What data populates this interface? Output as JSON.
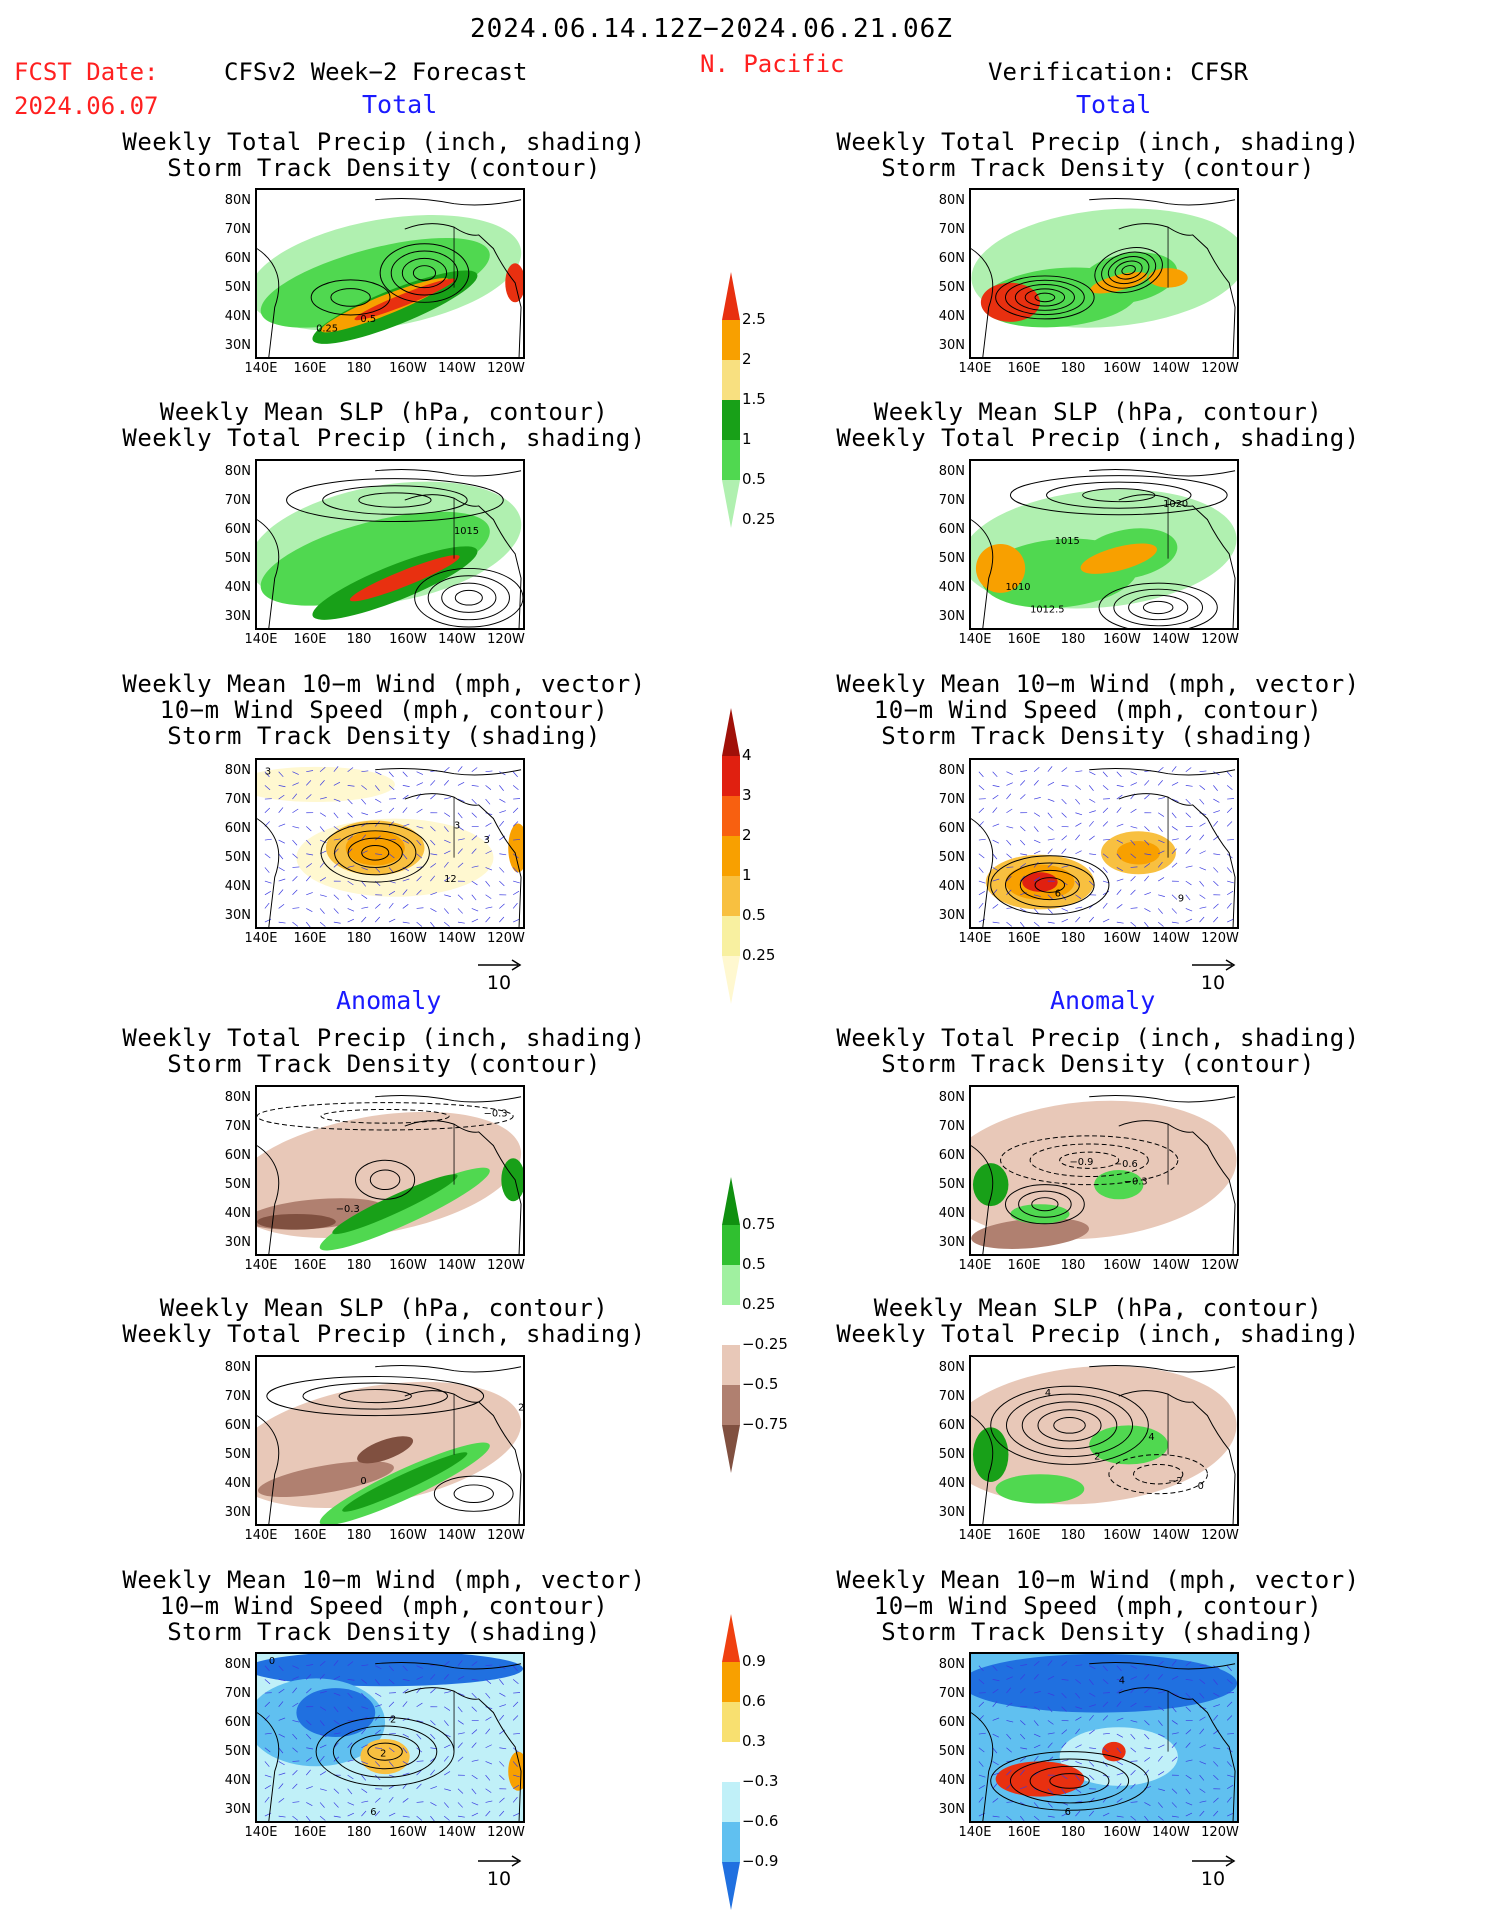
{
  "header": {
    "period": "2024.06.14.12Z−2024.06.21.06Z",
    "fcst_label": "FCST Date:",
    "fcst_date": "2024.06.07",
    "model_label": "CFSv2 Week−2 Forecast",
    "region": "N. Pacific",
    "verification_label": "Verification: CFSR"
  },
  "sections": {
    "total": "Total",
    "anomaly": "Anomaly"
  },
  "titles": {
    "precip_storm": [
      "Weekly Total Precip (inch, shading)",
      "Storm Track Density (contour)"
    ],
    "slp_precip": [
      "Weekly Mean SLP (hPa, contour)",
      "Weekly Total Precip (inch, shading)"
    ],
    "wind_storm": [
      "Weekly Mean 10−m Wind (mph, vector)",
      "10−m Wind Speed (mph, contour)",
      "Storm Track Density (shading)"
    ]
  },
  "axes": {
    "y_ticks": [
      "80N",
      "70N",
      "60N",
      "50N",
      "40N",
      "30N"
    ],
    "x_ticks": [
      "140E",
      "160E",
      "180",
      "160W",
      "140W",
      "120W"
    ]
  },
  "vector_reference": "10",
  "colorbars": [
    {
      "id": "total-precip",
      "labels": [
        "2.5",
        "2",
        "1.5",
        "1",
        "0.5",
        "0.25"
      ],
      "colors": [
        "#e83010",
        "#f8a000",
        "#f8e080",
        "#18a018",
        "#50d850",
        "#b0f0b0"
      ]
    },
    {
      "id": "total-storm",
      "labels": [
        "4",
        "3",
        "2",
        "1",
        "0.5",
        "0.25"
      ],
      "colors": [
        "#a01008",
        "#e02010",
        "#f86010",
        "#f8a000",
        "#f8c040",
        "#f8f0a0",
        "#fff8d0"
      ]
    },
    {
      "id": "anom-precip",
      "labels": [
        "0.75",
        "0.5",
        "0.25",
        "−0.25",
        "−0.5",
        "−0.75"
      ],
      "colors": [
        "#109010",
        "#30c030",
        "#a0f0a0",
        "#ffffff",
        "#e8c8b8",
        "#b08070",
        "#805040"
      ]
    },
    {
      "id": "anom-storm",
      "labels": [
        "0.9",
        "0.6",
        "0.3",
        "−0.3",
        "−0.6",
        "−0.9"
      ],
      "colors": [
        "#f04010",
        "#f8a000",
        "#f8e070",
        "#ffffff",
        "#c0f0f8",
        "#60c0f0",
        "#2070e0"
      ]
    }
  ],
  "panel_contour_labels": {
    "p1": [
      "0.25",
      "0.5"
    ],
    "p3": [
      "1015"
    ],
    "p4": [
      "1020",
      "1015",
      "1010",
      "1012.5"
    ],
    "p5": [
      "3",
      "3",
      "3",
      "12"
    ],
    "p6": [
      "6",
      "9"
    ],
    "p7": [
      "−0.3",
      "−0.3"
    ],
    "p8": [
      "−0.9",
      "−0.6",
      "−0.3"
    ],
    "p9": [
      "2",
      "0"
    ],
    "p10": [
      "4",
      "2",
      "−2",
      "4",
      "0"
    ],
    "p11": [
      "0",
      "2",
      "2",
      "6"
    ],
    "p12": [
      "4",
      "6"
    ]
  },
  "chart_data": [
    {
      "type": "heatmap",
      "title": "Weekly Total Precip (inch, shading) / Storm Track Density (contour)",
      "column": "CFSv2 Week−2 Forecast",
      "section": "Total",
      "units": "inch",
      "color_levels": [
        0.25,
        0.5,
        1,
        1.5,
        2,
        2.5
      ],
      "contour_labels": [
        0.25,
        0.5
      ]
    },
    {
      "type": "heatmap",
      "title": "Weekly Total Precip (inch, shading) / Storm Track Density (contour)",
      "column": "Verification: CFSR",
      "section": "Total",
      "units": "inch",
      "color_levels": [
        0.25,
        0.5,
        1,
        1.5,
        2,
        2.5
      ]
    },
    {
      "type": "heatmap",
      "title": "Weekly Mean SLP (hPa, contour) / Weekly Total Precip (inch, shading)",
      "column": "CFSv2 Week−2 Forecast",
      "section": "Total",
      "contour_labels": [
        1015
      ]
    },
    {
      "type": "heatmap",
      "title": "Weekly Mean SLP (hPa, contour) / Weekly Total Precip (inch, shading)",
      "column": "Verification: CFSR",
      "section": "Total",
      "contour_labels": [
        1020,
        1015,
        1010,
        1012.5
      ]
    },
    {
      "type": "heatmap",
      "title": "Weekly Mean 10−m Wind / 10−m Wind Speed / Storm Track Density",
      "column": "CFSv2 Week−2 Forecast",
      "section": "Total",
      "color_levels": [
        0.25,
        0.5,
        1,
        2,
        3,
        4
      ],
      "contour_labels": [
        3,
        3,
        3,
        12
      ]
    },
    {
      "type": "heatmap",
      "title": "Weekly Mean 10−m Wind / 10−m Wind Speed / Storm Track Density",
      "column": "Verification: CFSR",
      "section": "Total",
      "color_levels": [
        0.25,
        0.5,
        1,
        2,
        3,
        4
      ],
      "contour_labels": [
        6,
        9
      ]
    },
    {
      "type": "heatmap",
      "title": "Weekly Total Precip (inch, shading) / Storm Track Density (contour)",
      "column": "CFSv2 Week−2 Forecast",
      "section": "Anomaly",
      "color_levels": [
        -0.75,
        -0.5,
        -0.25,
        0.25,
        0.5,
        0.75
      ],
      "contour_labels": [
        -0.3,
        -0.3
      ]
    },
    {
      "type": "heatmap",
      "title": "Weekly Total Precip (inch, shading) / Storm Track Density (contour)",
      "column": "Verification: CFSR",
      "section": "Anomaly",
      "color_levels": [
        -0.75,
        -0.5,
        -0.25,
        0.25,
        0.5,
        0.75
      ],
      "contour_labels": [
        -0.9,
        -0.6,
        -0.3
      ]
    },
    {
      "type": "heatmap",
      "title": "Weekly Mean SLP (hPa, contour) / Weekly Total Precip (inch, shading)",
      "column": "CFSv2 Week−2 Forecast",
      "section": "Anomaly",
      "contour_labels": [
        2,
        0
      ]
    },
    {
      "type": "heatmap",
      "title": "Weekly Mean SLP (hPa, contour) / Weekly Total Precip (inch, shading)",
      "column": "Verification: CFSR",
      "section": "Anomaly",
      "contour_labels": [
        4,
        2,
        -2,
        4,
        0
      ]
    },
    {
      "type": "heatmap",
      "title": "Weekly Mean 10−m Wind / 10−m Wind Speed / Storm Track Density",
      "column": "CFSv2 Week−2 Forecast",
      "section": "Anomaly",
      "color_levels": [
        -0.9,
        -0.6,
        -0.3,
        0.3,
        0.6,
        0.9
      ],
      "contour_labels": [
        0,
        2,
        2,
        6
      ]
    },
    {
      "type": "heatmap",
      "title": "Weekly Mean 10−m Wind / 10−m Wind Speed / Storm Track Density",
      "column": "Verification: CFSR",
      "section": "Anomaly",
      "color_levels": [
        -0.9,
        -0.6,
        -0.3,
        0.3,
        0.6,
        0.9
      ],
      "contour_labels": [
        4,
        6
      ]
    }
  ]
}
